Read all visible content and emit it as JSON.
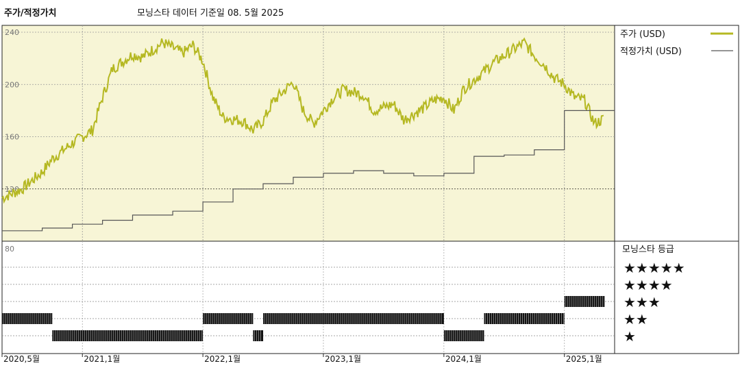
{
  "header": {
    "title": "주가/적정가치",
    "subtitle": "모닝스타 데이터 기준일 08. 5월 2025"
  },
  "colors": {
    "price": "#b5b822",
    "fair_value": "#555555",
    "panel_bg": "#f7f5d6",
    "grid": "#999999"
  },
  "chart_data": [
    {
      "type": "line",
      "panel": "price",
      "yticks": [
        "240",
        "200",
        "160",
        "120"
      ],
      "ylim": [
        80,
        240
      ],
      "xlim": [
        "2020-05",
        "2025-06"
      ],
      "legend_position": "right",
      "series": [
        {
          "name": "주가 (USD)",
          "style": "jagged",
          "x": [
            "2020-05",
            "2020-07",
            "2020-09",
            "2020-10",
            "2020-12",
            "2021-01",
            "2021-02",
            "2021-03",
            "2021-04",
            "2021-06",
            "2021-07",
            "2021-09",
            "2021-11",
            "2021-12",
            "2022-01",
            "2022-02",
            "2022-03",
            "2022-05",
            "2022-06",
            "2022-07",
            "2022-08",
            "2022-10",
            "2022-11",
            "2022-12",
            "2023-02",
            "2023-03",
            "2023-05",
            "2023-06",
            "2023-08",
            "2023-09",
            "2023-11",
            "2023-12",
            "2024-01",
            "2024-02",
            "2024-03",
            "2024-05",
            "2024-06",
            "2024-08",
            "2024-09",
            "2024-10",
            "2024-11",
            "2024-12",
            "2025-01",
            "2025-02",
            "2025-03",
            "2025-04",
            "2025-05"
          ],
          "values": [
            113,
            120,
            133,
            143,
            155,
            160,
            165,
            190,
            212,
            223,
            221,
            232,
            224,
            230,
            218,
            190,
            175,
            172,
            165,
            172,
            187,
            202,
            180,
            170,
            190,
            196,
            192,
            180,
            185,
            173,
            182,
            188,
            190,
            180,
            197,
            210,
            217,
            227,
            232,
            222,
            215,
            205,
            200,
            190,
            188,
            170,
            174
          ]
        },
        {
          "name": "적정가치 (USD)",
          "style": "step",
          "x": [
            "2020-05",
            "2020-09",
            "2020-12",
            "2021-03",
            "2021-06",
            "2021-10",
            "2022-01",
            "2022-04",
            "2022-07",
            "2022-10",
            "2023-01",
            "2023-04",
            "2023-07",
            "2023-10",
            "2024-01",
            "2024-04",
            "2024-07",
            "2024-10",
            "2025-01",
            "2025-06"
          ],
          "values": [
            88,
            90,
            93,
            96,
            100,
            103,
            110,
            120,
            124,
            129,
            132,
            134,
            132,
            130,
            132,
            145,
            146,
            150,
            180,
            180
          ]
        }
      ]
    },
    {
      "type": "rating",
      "panel": "star_rating",
      "ytick": "80",
      "legend_title": "모닝스타 등급",
      "levels": [
        "★★★★★",
        "★★★★",
        "★★★",
        "★★",
        "★"
      ],
      "xlabels": [
        "2020,5월",
        "2021,1월",
        "2022,1월",
        "2023,1월",
        "2024,1월",
        "2025,1월"
      ],
      "segments": [
        {
          "rating": 2,
          "from": "2020-05",
          "to": "2020-10"
        },
        {
          "rating": 1,
          "from": "2020-10",
          "to": "2022-01"
        },
        {
          "rating": 2,
          "from": "2022-01",
          "to": "2022-06"
        },
        {
          "rating": 1,
          "from": "2022-06",
          "to": "2022-07"
        },
        {
          "rating": 2,
          "from": "2022-07",
          "to": "2024-01"
        },
        {
          "rating": 1,
          "from": "2024-01",
          "to": "2024-05"
        },
        {
          "rating": 2,
          "from": "2024-05",
          "to": "2025-01"
        },
        {
          "rating": 3,
          "from": "2025-01",
          "to": "2025-05"
        }
      ]
    }
  ]
}
